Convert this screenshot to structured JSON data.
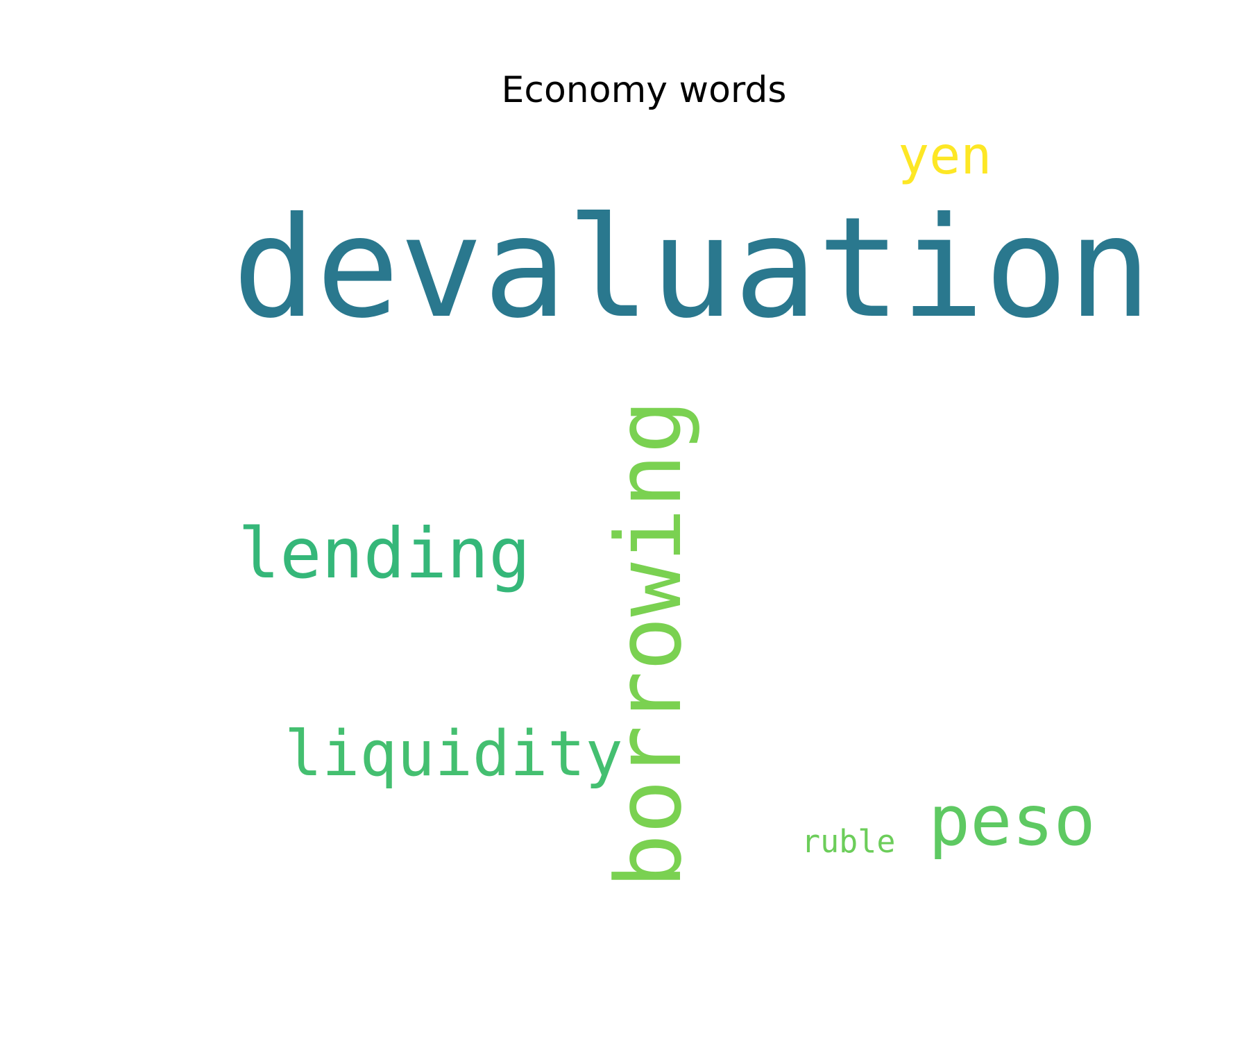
{
  "chart_data": {
    "type": "wordcloud",
    "title": "Economy words",
    "words": [
      {
        "text": "devaluation",
        "weight": 1.0,
        "color": "#2a788e",
        "orientation": "horizontal"
      },
      {
        "text": "borrowing",
        "weight": 0.78,
        "color": "#7ad151",
        "orientation": "vertical"
      },
      {
        "text": "lending",
        "weight": 0.58,
        "color": "#35b779",
        "orientation": "horizontal"
      },
      {
        "text": "liquidity",
        "weight": 0.52,
        "color": "#44bf70",
        "orientation": "horizontal"
      },
      {
        "text": "peso",
        "weight": 0.58,
        "color": "#5ec962",
        "orientation": "horizontal"
      },
      {
        "text": "yen",
        "weight": 0.45,
        "color": "#fde725",
        "orientation": "horizontal"
      },
      {
        "text": "ruble",
        "weight": 0.28,
        "color": "#6ccd5a",
        "orientation": "horizontal"
      }
    ]
  }
}
